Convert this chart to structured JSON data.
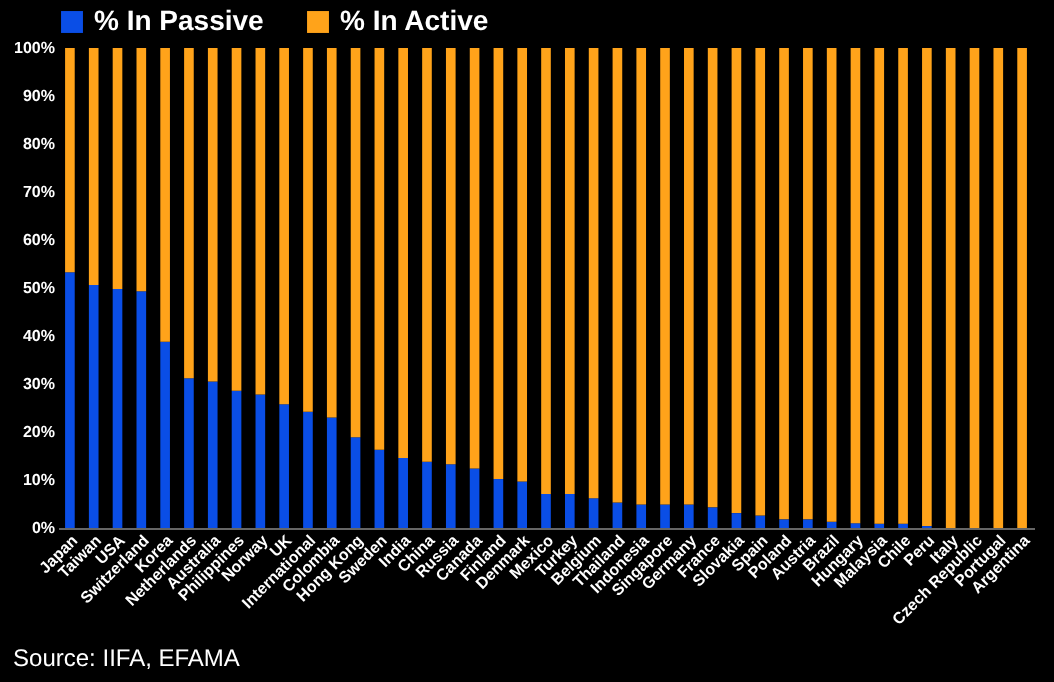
{
  "chart_data": {
    "type": "bar",
    "stacked": true,
    "legend": "top",
    "grid": false,
    "categories": [
      "Japan",
      "Taiwan",
      "USA",
      "Switzerland",
      "Korea",
      "Netherlands",
      "Australia",
      "Philippines",
      "Norway",
      "UK",
      "International",
      "Colombia",
      "Hong Kong",
      "Sweden",
      "India",
      "China",
      "Russia",
      "Canada",
      "Finland",
      "Denmark",
      "Mexico",
      "Turkey",
      "Belgium",
      "Thailand",
      "Indonesia",
      "Singapore",
      "Germany",
      "France",
      "Slovakia",
      "Spain",
      "Poland",
      "Austria",
      "Brazil",
      "Hungary",
      "Malaysia",
      "Chile",
      "Peru",
      "Italy",
      "Czech Republic",
      "Portugal",
      "Argentina"
    ],
    "series": [
      {
        "name": "% In Passive",
        "color": "#0a4ee6",
        "values": [
          53.3,
          50.6,
          49.8,
          49.3,
          38.8,
          31.2,
          30.5,
          28.6,
          27.8,
          25.8,
          24.2,
          23.0,
          18.9,
          16.3,
          14.6,
          13.8,
          13.3,
          12.4,
          10.2,
          9.7,
          7.1,
          7.1,
          6.2,
          5.3,
          4.9,
          4.9,
          4.9,
          4.3,
          3.1,
          2.6,
          1.8,
          1.8,
          1.3,
          1.0,
          0.9,
          0.9,
          0.4,
          0,
          0,
          0,
          0
        ]
      },
      {
        "name": "% In Active",
        "color": "#ffa31a",
        "values": [
          46.7,
          49.4,
          50.2,
          50.7,
          61.2,
          68.8,
          69.5,
          71.4,
          72.2,
          74.2,
          75.8,
          77.0,
          81.1,
          83.7,
          85.4,
          86.2,
          86.7,
          87.6,
          89.8,
          90.3,
          92.9,
          92.9,
          93.8,
          94.7,
          95.1,
          95.1,
          95.1,
          95.7,
          96.9,
          97.4,
          98.2,
          98.2,
          98.7,
          99.0,
          99.1,
          99.1,
          99.6,
          100,
          100,
          100,
          100
        ]
      }
    ],
    "ylim": [
      0,
      100
    ],
    "yticks": [
      {
        "value": 0,
        "label": "0%"
      },
      {
        "value": 10,
        "label": "10%"
      },
      {
        "value": 20,
        "label": "20%"
      },
      {
        "value": 30,
        "label": "30%"
      },
      {
        "value": 40,
        "label": "40%"
      },
      {
        "value": 50,
        "label": "50%"
      },
      {
        "value": 60,
        "label": "60%"
      },
      {
        "value": 70,
        "label": "70%"
      },
      {
        "value": 80,
        "label": "80%"
      },
      {
        "value": 90,
        "label": "90%"
      },
      {
        "value": 100,
        "label": "100%"
      }
    ],
    "annotations": [
      "Source: IIFA, EFAMA"
    ]
  }
}
